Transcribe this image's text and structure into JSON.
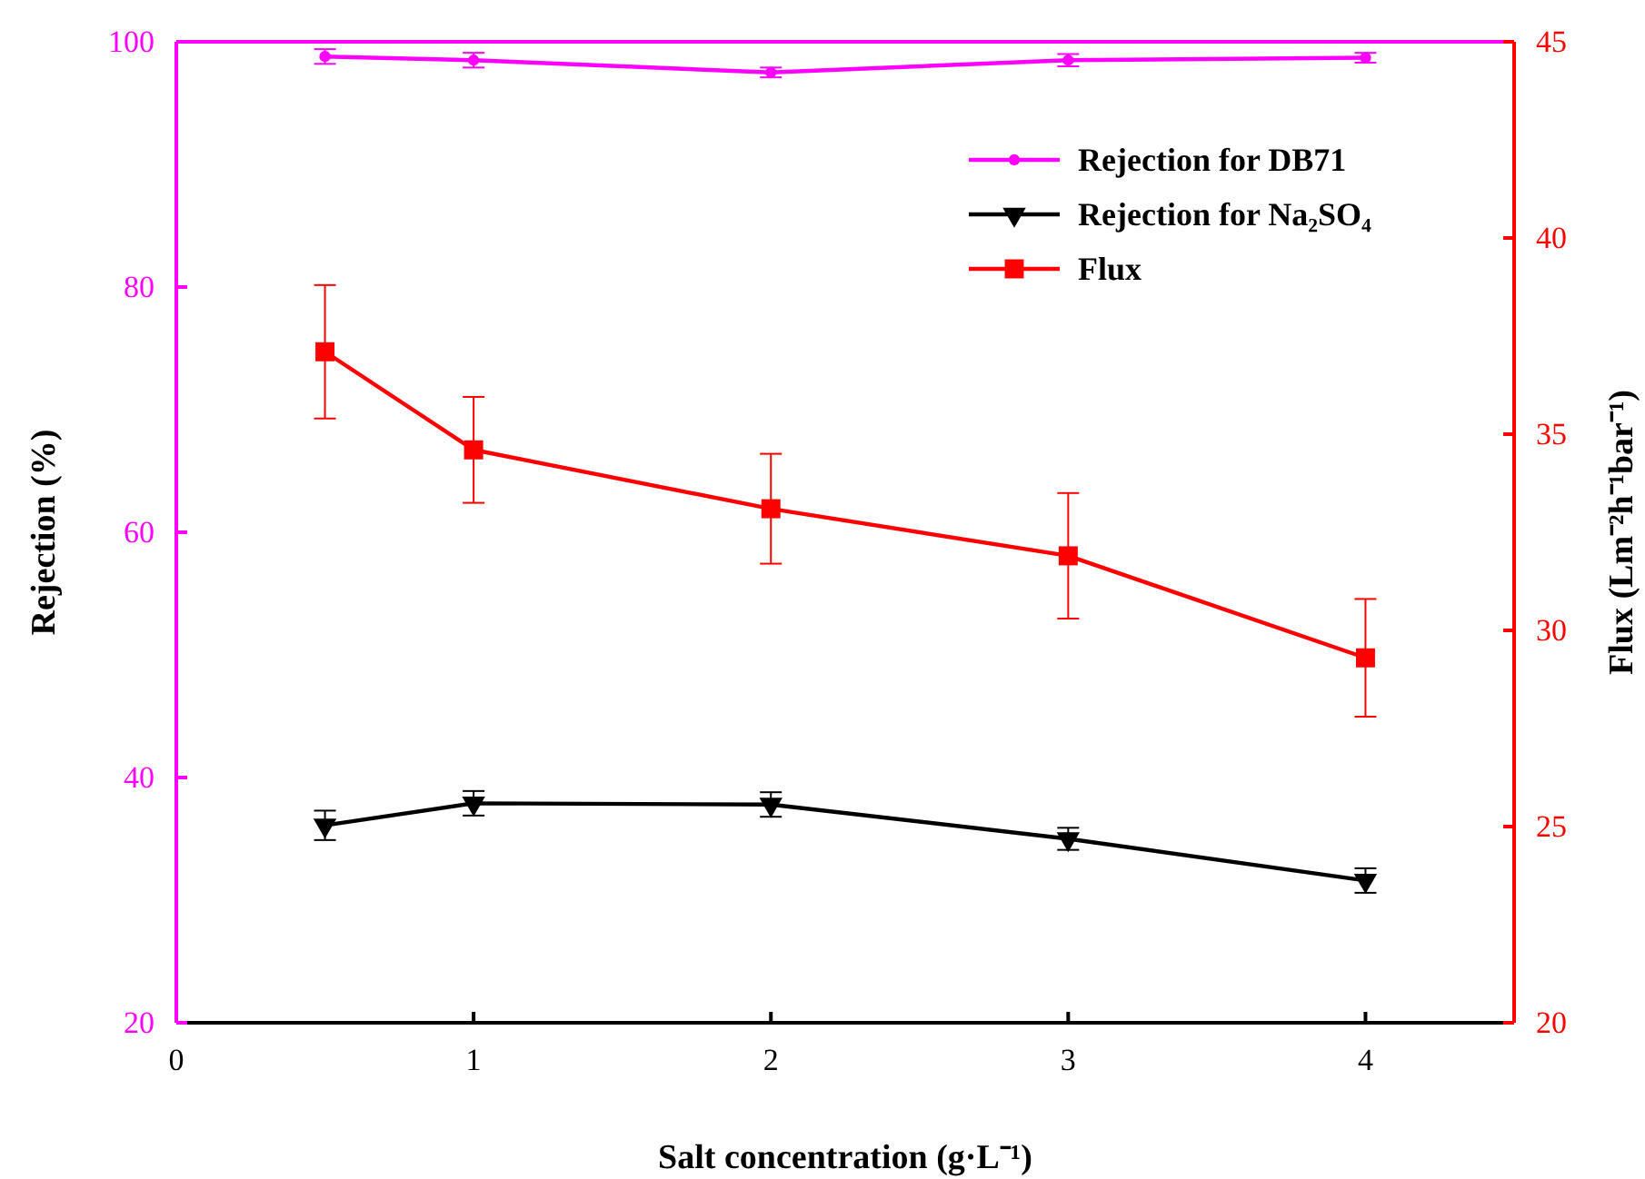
{
  "chart_data": {
    "type": "line",
    "xlabel": "Salt concentration (g·L⁻¹)",
    "ylabel": "Rejection (%)",
    "y2label": "Flux (Lm⁻²h⁻¹bar⁻¹)",
    "x": [
      0.5,
      1,
      2,
      3,
      4
    ],
    "xlim": [
      0,
      4.5
    ],
    "xticks": [
      0,
      1,
      2,
      3,
      4
    ],
    "ylim": [
      20,
      100
    ],
    "yticks": [
      20,
      40,
      60,
      80,
      100
    ],
    "y2lim": [
      20,
      45
    ],
    "y2ticks": [
      20,
      25,
      30,
      35,
      40,
      45
    ],
    "legend": "top right",
    "series": [
      {
        "name": "Rejection for DB71",
        "color": "#ff00ff",
        "marker": "circle",
        "values": [
          98.8,
          98.5,
          97.5,
          98.5,
          98.7
        ],
        "errors": [
          0.6,
          0.6,
          0.4,
          0.5,
          0.4
        ]
      },
      {
        "name": "Rejection for Na₂SO₄",
        "color": "#000000",
        "marker": "triangle",
        "values": [
          36.1,
          37.9,
          37.8,
          35.0,
          31.6
        ],
        "errors": [
          1.2,
          1.0,
          1.0,
          0.9,
          1.0
        ]
      },
      {
        "name": "Flux",
        "color": "#ff0000",
        "marker": "square",
        "axis": "y2",
        "values": [
          37.1,
          34.6,
          33.1,
          31.9,
          29.3
        ],
        "errors": [
          1.7,
          1.35,
          1.4,
          1.6,
          1.5
        ]
      }
    ]
  }
}
